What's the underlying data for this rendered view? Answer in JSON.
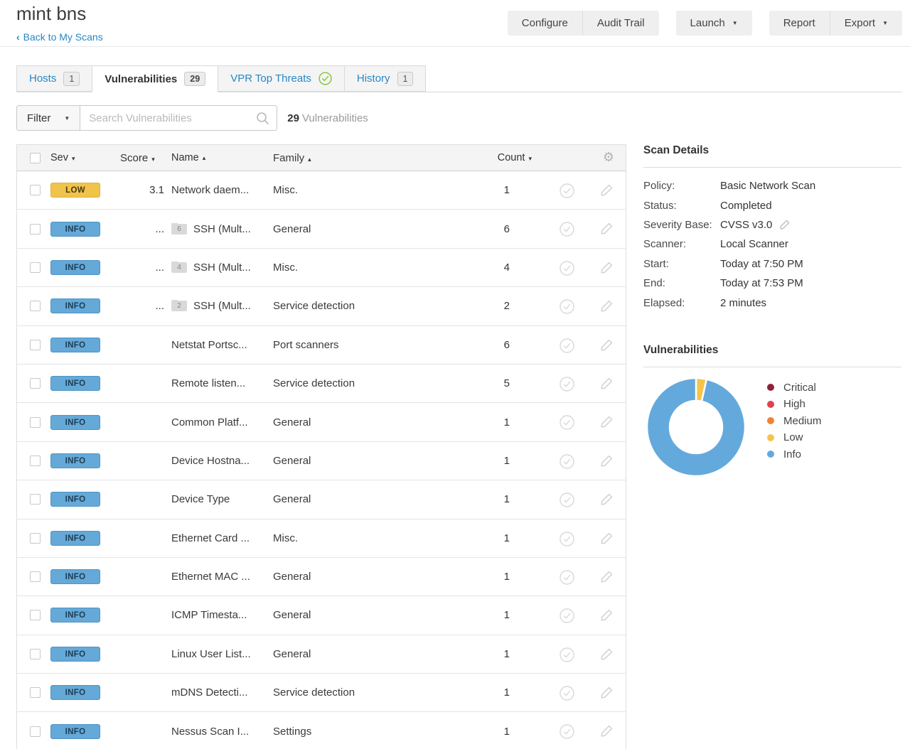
{
  "header": {
    "title": "mint bns",
    "back_chevron": "‹",
    "back_label": "Back to My Scans",
    "buttons": {
      "configure": "Configure",
      "audit_trail": "Audit Trail",
      "launch": "Launch",
      "report": "Report",
      "export": "Export",
      "caret_glyph": "▼"
    }
  },
  "tabs": [
    {
      "label": "Hosts",
      "badge": "1"
    },
    {
      "label": "Vulnerabilities",
      "badge": "29"
    },
    {
      "label": "VPR Top Threats"
    },
    {
      "label": "History",
      "badge": "1"
    }
  ],
  "toolbar": {
    "filter_label": "Filter",
    "filter_caret": "▼",
    "search_placeholder": "Search Vulnerabilities",
    "count": "29",
    "count_label": "Vulnerabilities"
  },
  "table": {
    "columns": [
      {
        "label": "Sev",
        "caret": "▾"
      },
      {
        "label": "Score",
        "caret": "▾"
      },
      {
        "label": "Name",
        "caret": "▴"
      },
      {
        "label": "Family",
        "caret": "▴"
      },
      {
        "label": "Count",
        "caret": "▾"
      }
    ],
    "settings_icon_glyph": "⚙",
    "rows": [
      {
        "sev": "LOW",
        "level": "low",
        "score": "3.1",
        "name": "Network daem...",
        "family": "Misc.",
        "count": "1"
      },
      {
        "sev": "INFO",
        "level": "info",
        "score": "...",
        "group": "6",
        "name": "SSH (Mult...",
        "family": "General",
        "count": "6"
      },
      {
        "sev": "INFO",
        "level": "info",
        "score": "...",
        "group": "4",
        "name": "SSH (Mult...",
        "family": "Misc.",
        "count": "4"
      },
      {
        "sev": "INFO",
        "level": "info",
        "score": "...",
        "group": "2",
        "name": "SSH (Mult...",
        "family": "Service detection",
        "count": "2"
      },
      {
        "sev": "INFO",
        "level": "info",
        "score": "",
        "name": "Netstat Portsc...",
        "family": "Port scanners",
        "count": "6"
      },
      {
        "sev": "INFO",
        "level": "info",
        "score": "",
        "name": "Remote listen...",
        "family": "Service detection",
        "count": "5"
      },
      {
        "sev": "INFO",
        "level": "info",
        "score": "",
        "name": "Common Platf...",
        "family": "General",
        "count": "1"
      },
      {
        "sev": "INFO",
        "level": "info",
        "score": "",
        "name": "Device Hostna...",
        "family": "General",
        "count": "1"
      },
      {
        "sev": "INFO",
        "level": "info",
        "score": "",
        "name": "Device Type",
        "family": "General",
        "count": "1"
      },
      {
        "sev": "INFO",
        "level": "info",
        "score": "",
        "name": "Ethernet Card ...",
        "family": "Misc.",
        "count": "1"
      },
      {
        "sev": "INFO",
        "level": "info",
        "score": "",
        "name": "Ethernet MAC ...",
        "family": "General",
        "count": "1"
      },
      {
        "sev": "INFO",
        "level": "info",
        "score": "",
        "name": "ICMP Timesta...",
        "family": "General",
        "count": "1"
      },
      {
        "sev": "INFO",
        "level": "info",
        "score": "",
        "name": "Linux User List...",
        "family": "General",
        "count": "1"
      },
      {
        "sev": "INFO",
        "level": "info",
        "score": "",
        "name": "mDNS Detecti...",
        "family": "Service detection",
        "count": "1"
      },
      {
        "sev": "INFO",
        "level": "info",
        "score": "",
        "name": "Nessus Scan I...",
        "family": "Settings",
        "count": "1"
      }
    ]
  },
  "scan_details": {
    "title": "Scan Details",
    "fields": [
      {
        "label": "Policy:",
        "value": "Basic Network Scan"
      },
      {
        "label": "Status:",
        "value": "Completed"
      },
      {
        "label": "Severity Base:",
        "value": "CVSS v3.0",
        "editable": true
      },
      {
        "label": "Scanner:",
        "value": "Local Scanner"
      },
      {
        "label": "Start:",
        "value": "Today at 7:50 PM"
      },
      {
        "label": "End:",
        "value": "Today at 7:53 PM"
      },
      {
        "label": "Elapsed:",
        "value": "2 minutes"
      }
    ]
  },
  "vulnerabilities_panel": {
    "title": "Vulnerabilities"
  },
  "chart_data": {
    "type": "pie",
    "donut": true,
    "title": "Vulnerabilities",
    "labels": [
      "Critical",
      "High",
      "Medium",
      "Low",
      "Info"
    ],
    "values": [
      0,
      0,
      0,
      1,
      28
    ],
    "colors": [
      "#8e2236",
      "#dd4250",
      "#ee8336",
      "#f5c54a",
      "#64a9dc"
    ],
    "legend_position": "right",
    "start_angle_deg": 0,
    "outer_radius": 69,
    "inner_radius": 37
  },
  "ui_colors": {
    "link_blue": "#2787c7",
    "low_badge": "#f0c34b",
    "info_badge": "#64a9d8",
    "vpr_check_green": "#8dc63f"
  }
}
